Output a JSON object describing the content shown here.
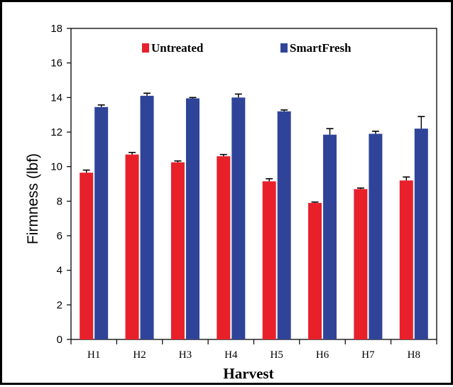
{
  "chart_data": {
    "type": "bar",
    "title": "",
    "xlabel": "Harvest",
    "ylabel": "Firmness (lbf)",
    "ylim": [
      0,
      18
    ],
    "yticks": [
      0,
      2,
      4,
      6,
      8,
      10,
      12,
      14,
      16,
      18
    ],
    "categories": [
      "H1",
      "H2",
      "H3",
      "H4",
      "H5",
      "H6",
      "H7",
      "H8"
    ],
    "legend_position": "top-center",
    "grid": false,
    "series": [
      {
        "name": "Untreated",
        "color": "#e8202a",
        "values": [
          9.65,
          10.7,
          10.25,
          10.6,
          9.15,
          7.9,
          8.7,
          9.2
        ],
        "errors": [
          0.15,
          0.12,
          0.08,
          0.1,
          0.15,
          0.05,
          0.06,
          0.2
        ]
      },
      {
        "name": "SmartFresh",
        "color": "#2f4499",
        "values": [
          13.45,
          14.1,
          13.95,
          14.0,
          13.2,
          11.85,
          11.9,
          12.2
        ],
        "errors": [
          0.12,
          0.15,
          0.05,
          0.2,
          0.08,
          0.35,
          0.15,
          0.7
        ]
      }
    ]
  }
}
